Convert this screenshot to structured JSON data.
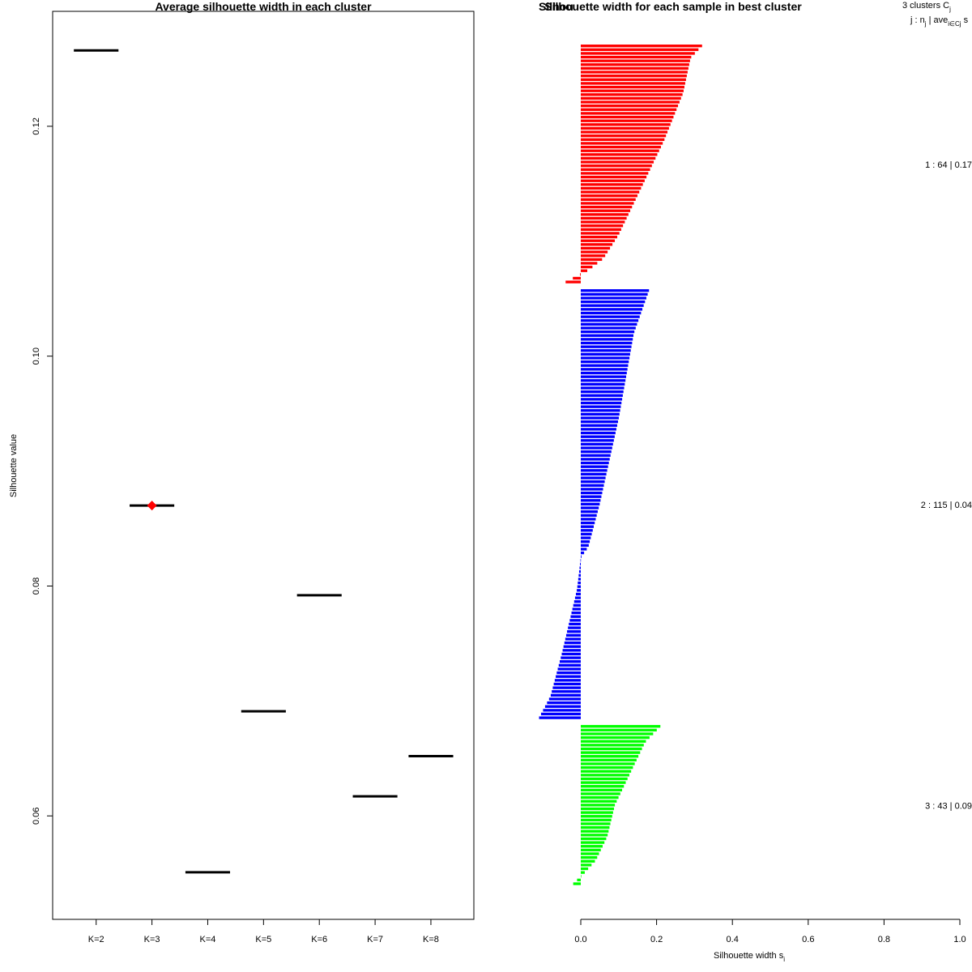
{
  "colors": {
    "cluster1": "#ff0000",
    "cluster2": "#0000ff",
    "cluster3": "#00ff00",
    "best_marker": "#ff0000",
    "axis": "#000000"
  },
  "chart_data": [
    {
      "type": "scatter",
      "title": "Average silhouette width in each cluster",
      "xlabel": "",
      "ylabel": "Silhouette value",
      "ylim": [
        0.051,
        0.13
      ],
      "yticks": [
        "0.06",
        "0.08",
        "0.10",
        "0.12"
      ],
      "ytick_values": [
        0.06,
        0.08,
        0.1,
        0.12
      ],
      "categories": [
        "K=2",
        "K=3",
        "K=4",
        "K=5",
        "K=6",
        "K=7",
        "K=8"
      ],
      "values": [
        0.1266,
        0.087,
        0.0551,
        0.0691,
        0.0792,
        0.0617,
        0.0652
      ],
      "best_index": 1,
      "marker": "horizontal segment per K; red diamond on best K",
      "grid": false,
      "legend": "none"
    },
    {
      "type": "bar",
      "orientation": "horizontal",
      "title": "Silhouette width for each sample in best cluster",
      "title_overlap_text": "Silhou",
      "xlabel": "Silhouette width s",
      "xlabel_sub": "i",
      "xlim": [
        0,
        1
      ],
      "xticks": [
        "0.0",
        "0.2",
        "0.4",
        "0.6",
        "0.8",
        "1.0"
      ],
      "xtick_values": [
        0,
        0.2,
        0.4,
        0.6,
        0.8,
        1.0
      ],
      "header_line1": "3  clusters  C",
      "header_line1_sub": "j",
      "header_line2_a": "j :  n",
      "header_line2_sub1": "j",
      "header_line2_b": " | ave",
      "header_line2_sub2": "i∈Cj",
      "header_line2_c": "  s",
      "grid": false,
      "legend": "none",
      "clusters": [
        {
          "label": "1 :   64  |  0.17",
          "n": 64,
          "first": 0.32,
          "last": -0.04,
          "shape": [
            [
              0,
              0.32
            ],
            [
              0.05,
              0.29
            ],
            [
              0.2,
              0.27
            ],
            [
              0.4,
              0.22
            ],
            [
              0.6,
              0.16
            ],
            [
              0.8,
              0.1
            ],
            [
              0.9,
              0.06
            ],
            [
              0.95,
              0.02
            ],
            [
              1,
              -0.04
            ]
          ]
        },
        {
          "label": "2 :   115  |  0.04",
          "n": 115,
          "first": 0.18,
          "last": -0.11,
          "shape": [
            [
              0,
              0.18
            ],
            [
              0.1,
              0.14
            ],
            [
              0.3,
              0.1
            ],
            [
              0.5,
              0.05
            ],
            [
              0.6,
              0.02
            ],
            [
              0.625,
              0.0
            ],
            [
              0.7,
              -0.01
            ],
            [
              0.85,
              -0.05
            ],
            [
              0.95,
              -0.08
            ],
            [
              1,
              -0.11
            ]
          ]
        },
        {
          "label": "3 :   43  |  0.09",
          "n": 43,
          "first": 0.21,
          "last": -0.02,
          "shape": [
            [
              0,
              0.21
            ],
            [
              0.1,
              0.17
            ],
            [
              0.3,
              0.13
            ],
            [
              0.5,
              0.09
            ],
            [
              0.7,
              0.07
            ],
            [
              0.85,
              0.04
            ],
            [
              0.93,
              0.01
            ],
            [
              1,
              -0.02
            ]
          ]
        }
      ]
    }
  ]
}
